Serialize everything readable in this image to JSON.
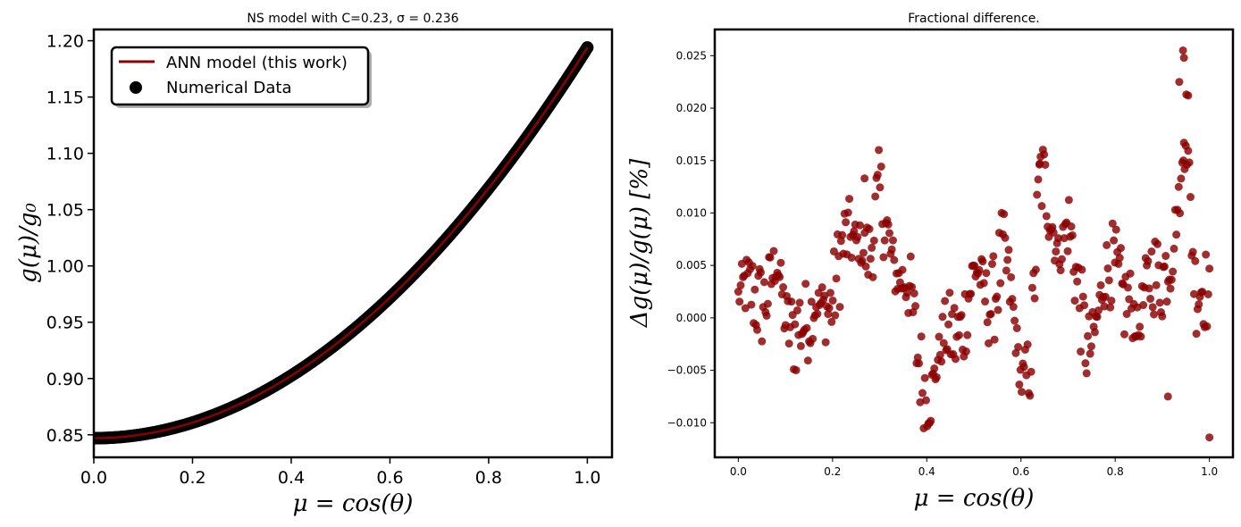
{
  "chart_data": [
    {
      "type": "line",
      "title": "NS model with C=0.23, σ = 0.236",
      "xlabel": "μ = cos(θ)",
      "ylabel": "g(μ)/g₀",
      "xlim": [
        0.0,
        1.05
      ],
      "ylim": [
        0.83,
        1.21
      ],
      "xticks": [
        "0.0",
        "0.2",
        "0.4",
        "0.6",
        "0.8",
        "1.0"
      ],
      "yticks": [
        "0.85",
        "0.90",
        "0.95",
        "1.00",
        "1.05",
        "1.10",
        "1.15",
        "1.20"
      ],
      "legend": {
        "placement": "upper-left",
        "entries": [
          "ANN model (this work)",
          "Numerical Data"
        ]
      },
      "series": [
        {
          "name": "ANN model (this work)",
          "kind": "line",
          "color": "#8b0000",
          "x": [
            0.0,
            0.05,
            0.1,
            0.15,
            0.2,
            0.25,
            0.3,
            0.35,
            0.4,
            0.45,
            0.5,
            0.55,
            0.6,
            0.65,
            0.7,
            0.75,
            0.8,
            0.85,
            0.9,
            0.95,
            1.0
          ],
          "y": [
            0.847,
            0.849,
            0.854,
            0.859,
            0.866,
            0.875,
            0.886,
            0.899,
            0.914,
            0.931,
            0.951,
            0.971,
            0.994,
            1.018,
            1.043,
            1.07,
            1.098,
            1.127,
            1.157,
            1.188,
            1.193
          ]
        },
        {
          "name": "Numerical Data",
          "kind": "scatter",
          "color": "#000000",
          "note_points": "dense sampling of the same curve"
        }
      ],
      "curve_model": {
        "a": 0.847,
        "b": 0.0,
        "c": 0.347
      }
    },
    {
      "type": "scatter",
      "title": "Fractional difference.",
      "xlabel": "μ = cos(θ)",
      "ylabel": "Δg(μ)/g(μ)  [%]",
      "xlim": [
        -0.05,
        1.05
      ],
      "ylim": [
        -0.0133,
        0.0275
      ],
      "xticks": [
        "0.0",
        "0.2",
        "0.4",
        "0.6",
        "0.8",
        "1.0"
      ],
      "yticks": [
        "−0.010",
        "−0.005",
        "0.000",
        "0.005",
        "0.010",
        "0.015",
        "0.020",
        "0.025"
      ],
      "color": "#8b0000",
      "profile_x": [
        0.0,
        0.02,
        0.05,
        0.08,
        0.1,
        0.13,
        0.15,
        0.18,
        0.2,
        0.23,
        0.26,
        0.28,
        0.3,
        0.32,
        0.34,
        0.36,
        0.38,
        0.41,
        0.44,
        0.47,
        0.5,
        0.53,
        0.56,
        0.58,
        0.6,
        0.62,
        0.64,
        0.66,
        0.68,
        0.7,
        0.72,
        0.74,
        0.77,
        0.8,
        0.83,
        0.85,
        0.88,
        0.9,
        0.92,
        0.94,
        0.95,
        0.97,
        1.0
      ],
      "profile_y": [
        0.002,
        0.001,
        0.003,
        0.004,
        -0.001,
        0.001,
        -0.002,
        0.002,
        0.003,
        0.006,
        0.009,
        0.006,
        0.01,
        0.008,
        0.005,
        0.002,
        -0.004,
        -0.006,
        -0.003,
        0.0,
        0.003,
        0.002,
        0.006,
        0.0,
        -0.005,
        -0.003,
        0.012,
        0.01,
        0.008,
        0.009,
        0.001,
        -0.002,
        0.002,
        0.004,
        0.003,
        -0.003,
        0.006,
        0.005,
        0.004,
        0.012,
        0.02,
        0.004,
        0.0
      ],
      "outliers": [
        [
          0.944,
          0.0255
        ],
        [
          0.946,
          0.0248
        ],
        [
          0.951,
          0.0213
        ],
        [
          0.955,
          0.0212
        ],
        [
          0.936,
          0.0225
        ],
        [
          1.0,
          -0.0114
        ],
        [
          0.912,
          -0.0075
        ],
        [
          0.946,
          0.0167
        ],
        [
          0.64,
          0.0147
        ],
        [
          0.268,
          0.0133
        ]
      ],
      "n_points": 400
    }
  ]
}
